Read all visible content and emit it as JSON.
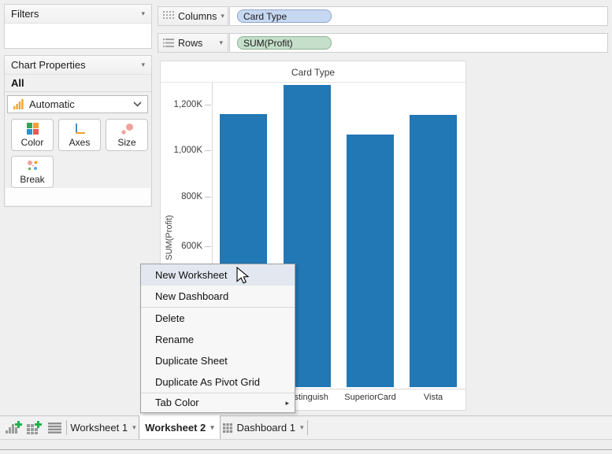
{
  "left_panel": {
    "filters": {
      "title": "Filters"
    },
    "chart_properties": {
      "title": "Chart Properties",
      "scope_label": "All",
      "chart_type_dropdown": {
        "value": "Automatic"
      },
      "buttons": [
        {
          "label": "Color"
        },
        {
          "label": "Axes"
        },
        {
          "label": "Size"
        },
        {
          "label": "Break"
        }
      ]
    }
  },
  "shelves": {
    "columns": {
      "label": "Columns",
      "pill": "Card Type"
    },
    "rows": {
      "label": "Rows",
      "pill": "SUM(Profit)"
    }
  },
  "chart": {
    "title": "Card Type",
    "y_axis_label": "SUM(Profit)",
    "chart_data": {
      "type": "bar",
      "categories": [
        "",
        "Distinguish",
        "SuperiorCard",
        "Vista"
      ],
      "values_k": [
        1140,
        1260,
        1055,
        1135
      ],
      "y_ticks": [
        "1,200K",
        "1,000K",
        "800K",
        "600K"
      ],
      "y_tick_values_k": [
        1200,
        1000,
        800,
        600
      ],
      "ylim_k": [
        0,
        1320
      ],
      "bar_color": "#2277b5",
      "grid": "off",
      "note": "first category label hidden behind context menu"
    }
  },
  "context_menu": {
    "items": [
      {
        "label": "New Worksheet",
        "highlighted": true
      },
      {
        "label": "New Dashboard"
      },
      {
        "label": "Delete"
      },
      {
        "label": "Rename"
      },
      {
        "label": "Duplicate Sheet"
      },
      {
        "label": "Duplicate As Pivot Grid"
      },
      {
        "label": "Tab Color",
        "has_submenu": true
      }
    ]
  },
  "tab_bar": {
    "tabs": [
      {
        "label": "Worksheet 1"
      },
      {
        "label": "Worksheet 2",
        "active": true
      },
      {
        "label": "Dashboard 1",
        "icon": "dashboard-grid-icon"
      }
    ]
  },
  "colors": {
    "bar": "#2277b5",
    "pill_dimension_bg": "#c7d8f2",
    "pill_measure_bg": "#c5dfca",
    "add_icon_green": "#21b24b",
    "workspace_bg": "#efefef"
  }
}
